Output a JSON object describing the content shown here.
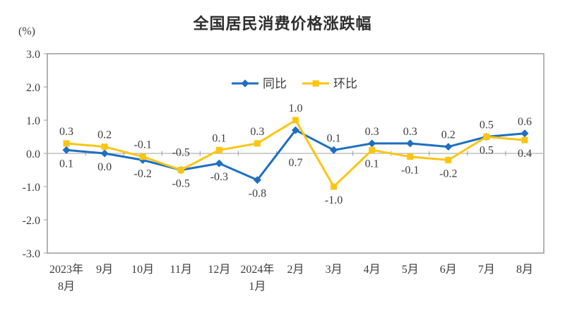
{
  "page": {
    "background": "#ffffff"
  },
  "chart_data": {
    "type": "line",
    "title": "全国居民消费价格涨跌幅",
    "unit_label": "(%)",
    "categories": [
      "2023年\n8月",
      "9月",
      "10月",
      "11月",
      "12月",
      "2024年\n1月",
      "2月",
      "3月",
      "4月",
      "5月",
      "6月",
      "7月",
      "8月"
    ],
    "series": [
      {
        "name": "同比",
        "color": "#1D6FC2",
        "marker": "diamond",
        "values": [
          0.1,
          0.0,
          -0.2,
          -0.5,
          -0.3,
          -0.8,
          0.7,
          0.1,
          0.3,
          0.3,
          0.2,
          0.5,
          0.6
        ],
        "label_side": [
          "below",
          "below",
          "below",
          "below",
          "below",
          "below",
          "below",
          "above",
          "above",
          "above",
          "above",
          "above",
          "above"
        ],
        "label_dy": [
          0,
          0,
          0,
          0,
          0,
          0,
          27,
          0,
          0,
          0,
          0,
          0,
          0
        ]
      },
      {
        "name": "环比",
        "color": "#FDC512",
        "marker": "square",
        "values": [
          0.3,
          0.2,
          -0.1,
          -0.5,
          0.1,
          0.3,
          1.0,
          -1.0,
          0.1,
          -0.1,
          -0.2,
          0.5,
          0.4
        ],
        "label_side": [
          "above",
          "above",
          "above",
          "above",
          "above",
          "above",
          "above",
          "below",
          "below",
          "below",
          "below",
          "below",
          "below"
        ],
        "label_dy": [
          0,
          0,
          0,
          -8,
          0,
          0,
          0,
          0,
          0,
          0,
          0,
          0,
          0
        ]
      }
    ],
    "ylim": [
      -3.0,
      3.0
    ],
    "ytick_labels": [
      "3.0",
      "2.0",
      "1.0",
      "0.0",
      "-1.0",
      "-2.0",
      "-3.0"
    ],
    "grid": "zero-axis-line-only",
    "legend": {
      "position": "top-center-inside",
      "entries": [
        "同比",
        "环比"
      ]
    },
    "colors": {
      "frame": "#9A9A9A",
      "zero_line": "#C0C0C0",
      "tick": "#9A9A9A",
      "text": "#3C3C3C"
    }
  }
}
